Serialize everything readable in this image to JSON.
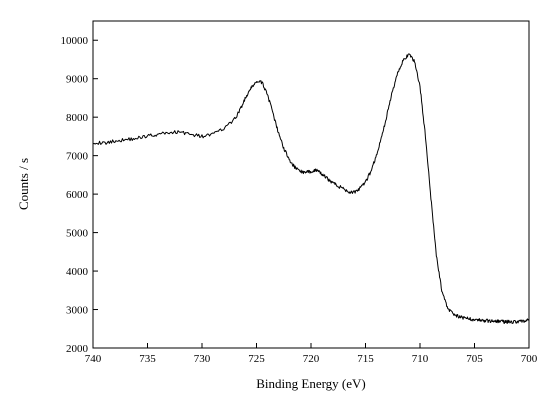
{
  "chart_data": {
    "type": "line",
    "xlabel": "Binding Energy (eV)",
    "ylabel": "Counts / s",
    "xlim": [
      740,
      700
    ],
    "ylim": [
      2000,
      10500
    ],
    "x_reversed": true,
    "xticks": [
      740,
      735,
      730,
      725,
      720,
      715,
      710,
      705,
      700
    ],
    "yticks": [
      2000,
      3000,
      4000,
      5000,
      6000,
      7000,
      8000,
      9000,
      10000
    ],
    "grid": false,
    "series": [
      {
        "line_color": "#000000",
        "x": [
          740,
          739,
          738,
          737,
          736,
          735,
          734,
          733,
          732,
          731,
          730,
          729,
          728,
          727,
          726.5,
          726,
          725.5,
          725,
          724.5,
          724,
          723.5,
          723,
          722.5,
          722,
          721.5,
          721,
          720.5,
          720,
          719.5,
          719,
          718.5,
          718,
          717.5,
          717,
          716.5,
          716,
          715.5,
          715,
          714.5,
          714,
          713.5,
          713,
          712.5,
          712,
          711.5,
          711,
          710.5,
          710,
          709.5,
          709,
          708.5,
          708,
          707.5,
          707,
          706.5,
          706,
          705.5,
          705,
          704.5,
          704,
          703.5,
          703,
          702.5,
          702,
          701.5,
          701,
          700.5,
          700
        ],
        "y": [
          7350,
          7320,
          7380,
          7420,
          7450,
          7520,
          7550,
          7600,
          7620,
          7550,
          7500,
          7560,
          7700,
          7950,
          8200,
          8500,
          8750,
          8930,
          8900,
          8600,
          8100,
          7600,
          7200,
          6900,
          6700,
          6600,
          6550,
          6600,
          6620,
          6520,
          6400,
          6300,
          6200,
          6150,
          6050,
          6050,
          6150,
          6300,
          6600,
          7000,
          7500,
          8100,
          8700,
          9200,
          9500,
          9620,
          9450,
          8800,
          7500,
          5900,
          4400,
          3500,
          3050,
          2900,
          2820,
          2780,
          2760,
          2740,
          2720,
          2710,
          2700,
          2700,
          2690,
          2680,
          2680,
          2690,
          2700,
          2720
        ]
      }
    ]
  }
}
